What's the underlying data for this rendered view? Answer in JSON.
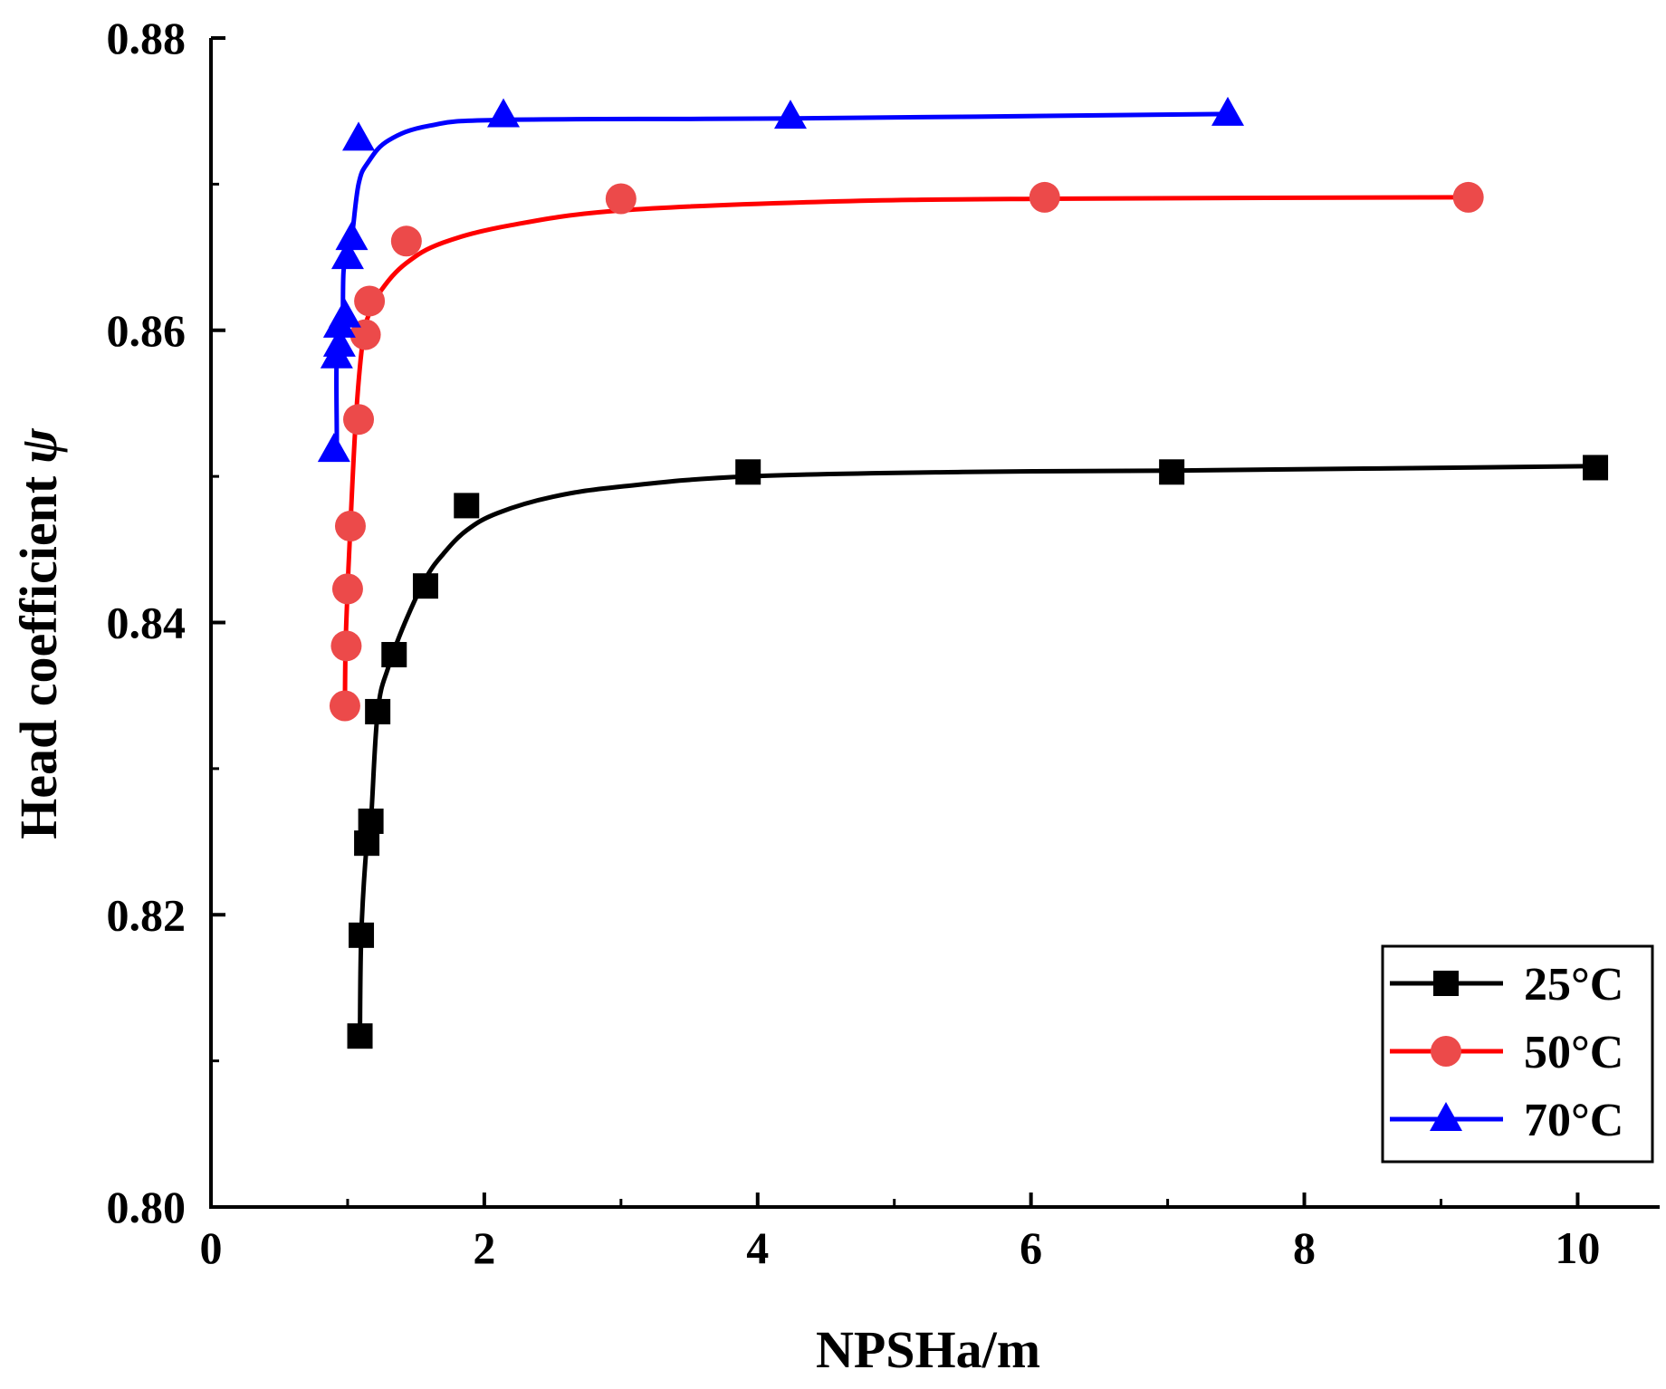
{
  "chart_data": {
    "type": "line",
    "title": "",
    "xlabel": "NPSHa/m",
    "ylabel": "Head coefficient",
    "ylabel_symbol": "ψ",
    "xlim": [
      0,
      10.6
    ],
    "ylim": [
      0.8,
      0.88
    ],
    "xticks": [
      0,
      2,
      4,
      6,
      8,
      10
    ],
    "xtick_labels": [
      "0",
      "2",
      "4",
      "6",
      "8",
      "10"
    ],
    "x_minor_ticks": [
      1,
      3,
      5,
      7,
      9
    ],
    "yticks": [
      0.8,
      0.82,
      0.84,
      0.86,
      0.88
    ],
    "ytick_labels": [
      "0.80",
      "0.82",
      "0.84",
      "0.86",
      "0.88"
    ],
    "y_minor_ticks": [
      0.81,
      0.83,
      0.85,
      0.87
    ],
    "grid": false,
    "legend_position": "bottom-right",
    "series": [
      {
        "name": "25°C",
        "color": "#000000",
        "marker": "square",
        "points": [
          [
            1.09,
            0.8117
          ],
          [
            1.1,
            0.8186
          ],
          [
            1.14,
            0.8249
          ],
          [
            1.17,
            0.8264
          ],
          [
            1.22,
            0.8339
          ],
          [
            1.34,
            0.8378
          ],
          [
            1.57,
            0.8425
          ],
          [
            1.87,
            0.848
          ],
          [
            3.93,
            0.8503
          ],
          [
            7.03,
            0.8503
          ],
          [
            10.13,
            0.8506
          ]
        ],
        "curve": [
          [
            1.09,
            0.8117
          ],
          [
            1.1,
            0.8186
          ],
          [
            1.14,
            0.8249
          ],
          [
            1.17,
            0.8264
          ],
          [
            1.22,
            0.8339
          ],
          [
            1.3,
            0.837
          ],
          [
            1.42,
            0.84
          ],
          [
            1.57,
            0.843
          ],
          [
            1.7,
            0.8447
          ],
          [
            1.87,
            0.8463
          ],
          [
            2.1,
            0.8475
          ],
          [
            2.5,
            0.8486
          ],
          [
            3.0,
            0.8493
          ],
          [
            3.93,
            0.85
          ],
          [
            5.5,
            0.8503
          ],
          [
            7.03,
            0.8504
          ],
          [
            10.13,
            0.8507
          ]
        ]
      },
      {
        "name": "50°C",
        "color": "#ff0000",
        "marker_color": "#ec4a4a",
        "marker": "circle",
        "points": [
          [
            0.98,
            0.8343
          ],
          [
            0.99,
            0.8384
          ],
          [
            1.0,
            0.8423
          ],
          [
            1.02,
            0.8466
          ],
          [
            1.08,
            0.8539
          ],
          [
            1.13,
            0.8597
          ],
          [
            1.16,
            0.862
          ],
          [
            1.43,
            0.8661
          ],
          [
            3.0,
            0.869
          ],
          [
            6.1,
            0.8691
          ],
          [
            9.2,
            0.8691
          ]
        ],
        "curve": [
          [
            0.98,
            0.8343
          ],
          [
            0.985,
            0.8384
          ],
          [
            1.0,
            0.8423
          ],
          [
            1.02,
            0.8466
          ],
          [
            1.06,
            0.8539
          ],
          [
            1.11,
            0.8592
          ],
          [
            1.16,
            0.8612
          ],
          [
            1.25,
            0.8628
          ],
          [
            1.43,
            0.8646
          ],
          [
            1.7,
            0.866
          ],
          [
            2.2,
            0.8672
          ],
          [
            3.0,
            0.8682
          ],
          [
            4.5,
            0.8688
          ],
          [
            6.1,
            0.869
          ],
          [
            9.2,
            0.8691
          ]
        ]
      },
      {
        "name": "70°C",
        "color": "#0000ff",
        "marker": "triangle",
        "points": [
          [
            0.9,
            0.8518
          ],
          [
            0.92,
            0.8582
          ],
          [
            0.94,
            0.859
          ],
          [
            0.94,
            0.8603
          ],
          [
            0.98,
            0.861
          ],
          [
            1.0,
            0.865
          ],
          [
            1.03,
            0.8663
          ],
          [
            1.08,
            0.8731
          ],
          [
            2.14,
            0.8747
          ],
          [
            4.24,
            0.8746
          ],
          [
            7.44,
            0.8748
          ]
        ],
        "curve": [
          [
            0.9,
            0.8518
          ],
          [
            0.92,
            0.8518
          ],
          [
            0.92,
            0.8582
          ],
          [
            0.96,
            0.8596
          ],
          [
            0.97,
            0.864
          ],
          [
            1.0,
            0.865
          ],
          [
            1.03,
            0.8663
          ],
          [
            1.08,
            0.87
          ],
          [
            1.15,
            0.8715
          ],
          [
            1.3,
            0.873
          ],
          [
            1.6,
            0.874
          ],
          [
            2.14,
            0.8744
          ],
          [
            4.24,
            0.8745
          ],
          [
            7.44,
            0.8748
          ]
        ]
      }
    ]
  }
}
